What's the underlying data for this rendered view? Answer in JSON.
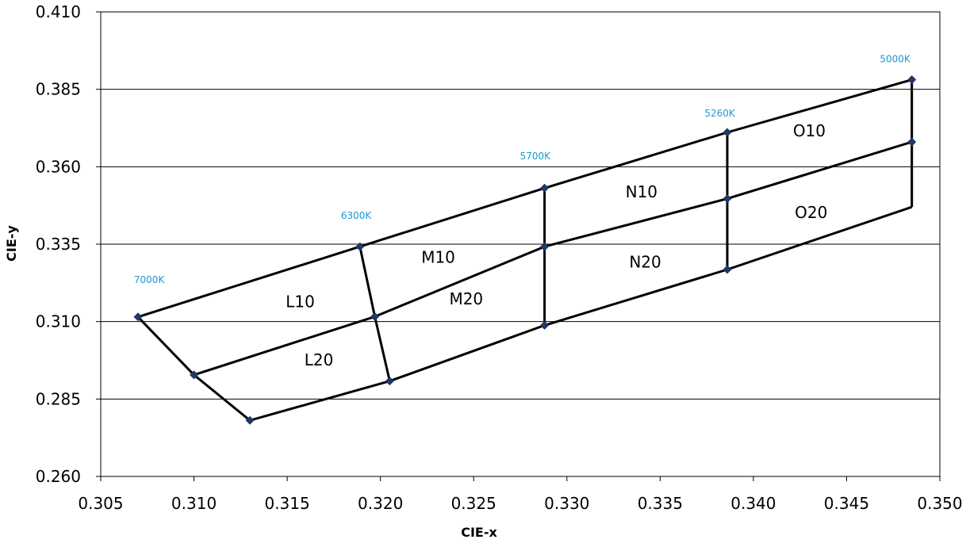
{
  "chart_data": {
    "type": "scatter",
    "title": "",
    "xlabel": "CIE-x",
    "ylabel": "CIE-y",
    "xlim": [
      0.305,
      0.35
    ],
    "ylim": [
      0.26,
      0.41
    ],
    "xticks": [
      "0.305",
      "0.310",
      "0.315",
      "0.320",
      "0.325",
      "0.330",
      "0.335",
      "0.340",
      "0.345",
      "0.350"
    ],
    "yticks": [
      "0.260",
      "0.285",
      "0.310",
      "0.335",
      "0.360",
      "0.385",
      "0.410"
    ],
    "grid": "horizontal",
    "colors": {
      "line": "#000000",
      "marker": "#1f3864",
      "cct_label": "#1a9ad6",
      "grid": "#000000"
    },
    "polylines": [
      {
        "name": "top-boundary",
        "points": [
          [
            0.307,
            0.3115
          ],
          [
            0.3189,
            0.3342
          ],
          [
            0.3288,
            0.3531
          ],
          [
            0.3386,
            0.3711
          ],
          [
            0.3485,
            0.3881
          ]
        ]
      },
      {
        "name": "middle-boundary",
        "points": [
          [
            0.31,
            0.2928
          ],
          [
            0.3197,
            0.3116
          ],
          [
            0.3288,
            0.3342
          ],
          [
            0.3386,
            0.3497
          ],
          [
            0.3485,
            0.368
          ]
        ]
      },
      {
        "name": "bottom-boundary",
        "points": [
          [
            0.313,
            0.2781
          ],
          [
            0.3205,
            0.2908
          ],
          [
            0.3288,
            0.3088
          ],
          [
            0.3386,
            0.3268
          ],
          [
            0.3485,
            0.347
          ]
        ]
      },
      {
        "name": "left-edge",
        "points": [
          [
            0.307,
            0.3115
          ],
          [
            0.31,
            0.2928
          ],
          [
            0.313,
            0.2781
          ]
        ]
      },
      {
        "name": "divider-6300",
        "points": [
          [
            0.3189,
            0.3342
          ],
          [
            0.3197,
            0.3116
          ],
          [
            0.3205,
            0.2908
          ]
        ]
      },
      {
        "name": "divider-5700",
        "points": [
          [
            0.3288,
            0.3531
          ],
          [
            0.3288,
            0.3342
          ],
          [
            0.3288,
            0.3088
          ]
        ]
      },
      {
        "name": "divider-5260",
        "points": [
          [
            0.3386,
            0.3711
          ],
          [
            0.3386,
            0.3497
          ],
          [
            0.3386,
            0.3268
          ]
        ]
      },
      {
        "name": "right-edge",
        "points": [
          [
            0.3485,
            0.3881
          ],
          [
            0.3485,
            0.368
          ],
          [
            0.3485,
            0.347
          ]
        ]
      }
    ],
    "markers": [
      [
        0.307,
        0.3115
      ],
      [
        0.31,
        0.2928
      ],
      [
        0.313,
        0.2781
      ],
      [
        0.3189,
        0.3342
      ],
      [
        0.3197,
        0.3116
      ],
      [
        0.3205,
        0.2908
      ],
      [
        0.3288,
        0.3531
      ],
      [
        0.3288,
        0.3342
      ],
      [
        0.3288,
        0.3088
      ],
      [
        0.3386,
        0.3711
      ],
      [
        0.3386,
        0.3497
      ],
      [
        0.3386,
        0.3268
      ],
      [
        0.3485,
        0.3881
      ],
      [
        0.3485,
        0.368
      ]
    ],
    "cct_labels": [
      {
        "text": "7000K",
        "x": 0.3076,
        "y": 0.3224
      },
      {
        "text": "6300K",
        "x": 0.3187,
        "y": 0.3432
      },
      {
        "text": "5700K",
        "x": 0.3283,
        "y": 0.3624
      },
      {
        "text": "5260K",
        "x": 0.3382,
        "y": 0.3762
      },
      {
        "text": "5000K",
        "x": 0.3476,
        "y": 0.3938
      }
    ],
    "region_labels": [
      {
        "text": "L10",
        "x": 0.3157,
        "y": 0.3147
      },
      {
        "text": "L20",
        "x": 0.3167,
        "y": 0.2958
      },
      {
        "text": "M10",
        "x": 0.3231,
        "y": 0.329
      },
      {
        "text": "M20",
        "x": 0.3246,
        "y": 0.3156
      },
      {
        "text": "N10",
        "x": 0.334,
        "y": 0.3501
      },
      {
        "text": "N20",
        "x": 0.3342,
        "y": 0.3275
      },
      {
        "text": "O10",
        "x": 0.343,
        "y": 0.3698
      },
      {
        "text": "O20",
        "x": 0.3431,
        "y": 0.3435
      }
    ]
  }
}
